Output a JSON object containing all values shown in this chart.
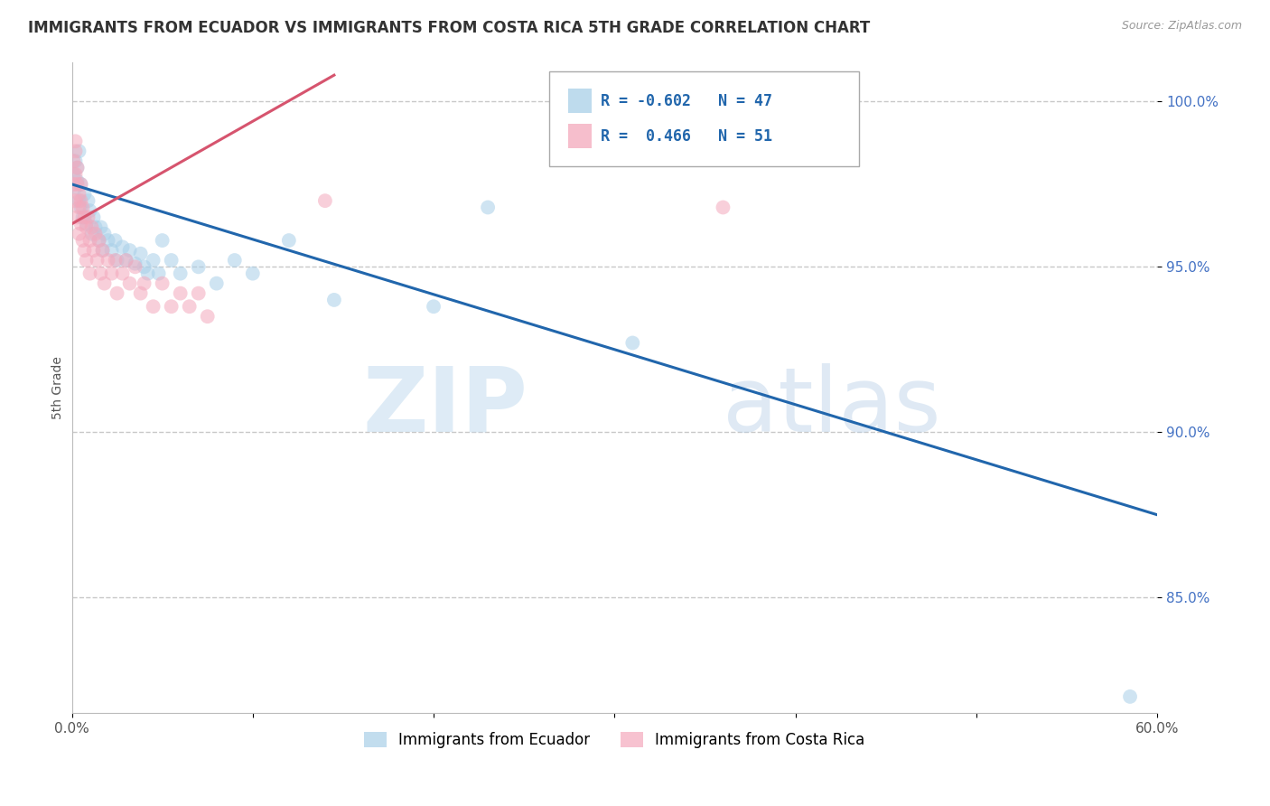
{
  "title": "IMMIGRANTS FROM ECUADOR VS IMMIGRANTS FROM COSTA RICA 5TH GRADE CORRELATION CHART",
  "source": "Source: ZipAtlas.com",
  "xlabel_bottom": [
    "Immigrants from Ecuador",
    "Immigrants from Costa Rica"
  ],
  "ylabel": "5th Grade",
  "xlim": [
    0.0,
    0.6
  ],
  "ylim": [
    0.815,
    1.012
  ],
  "xticks": [
    0.0,
    0.1,
    0.2,
    0.3,
    0.4,
    0.5,
    0.6
  ],
  "xticklabels": [
    "0.0%",
    "",
    "",
    "",
    "",
    "",
    "60.0%"
  ],
  "yticks": [
    0.85,
    0.9,
    0.95,
    1.0
  ],
  "yticklabels": [
    "85.0%",
    "90.0%",
    "95.0%",
    "100.0%"
  ],
  "ecuador_color": "#a8cfe8",
  "costa_rica_color": "#f4a8bc",
  "ecuador_R": -0.602,
  "ecuador_N": 47,
  "costa_rica_R": 0.466,
  "costa_rica_N": 51,
  "watermark_ZIP": "ZIP",
  "watermark_atlas": "atlas",
  "background_color": "#ffffff",
  "grid_color": "#c8c8c8",
  "ecuador_trendline_x": [
    0.0,
    0.6
  ],
  "ecuador_trendline_y": [
    0.975,
    0.875
  ],
  "costa_rica_trendline_x": [
    0.0,
    0.145
  ],
  "costa_rica_trendline_y": [
    0.963,
    1.008
  ],
  "ecuador_scatter": [
    [
      0.001,
      0.978
    ],
    [
      0.002,
      0.974
    ],
    [
      0.002,
      0.982
    ],
    [
      0.003,
      0.98
    ],
    [
      0.003,
      0.976
    ],
    [
      0.004,
      0.985
    ],
    [
      0.004,
      0.97
    ],
    [
      0.005,
      0.975
    ],
    [
      0.005,
      0.968
    ],
    [
      0.006,
      0.965
    ],
    [
      0.007,
      0.972
    ],
    [
      0.008,
      0.963
    ],
    [
      0.009,
      0.97
    ],
    [
      0.01,
      0.967
    ],
    [
      0.011,
      0.96
    ],
    [
      0.012,
      0.965
    ],
    [
      0.013,
      0.962
    ],
    [
      0.015,
      0.958
    ],
    [
      0.016,
      0.962
    ],
    [
      0.017,
      0.955
    ],
    [
      0.018,
      0.96
    ],
    [
      0.02,
      0.958
    ],
    [
      0.022,
      0.955
    ],
    [
      0.024,
      0.958
    ],
    [
      0.025,
      0.952
    ],
    [
      0.028,
      0.956
    ],
    [
      0.03,
      0.952
    ],
    [
      0.032,
      0.955
    ],
    [
      0.035,
      0.951
    ],
    [
      0.038,
      0.954
    ],
    [
      0.04,
      0.95
    ],
    [
      0.042,
      0.948
    ],
    [
      0.045,
      0.952
    ],
    [
      0.048,
      0.948
    ],
    [
      0.05,
      0.958
    ],
    [
      0.055,
      0.952
    ],
    [
      0.06,
      0.948
    ],
    [
      0.07,
      0.95
    ],
    [
      0.08,
      0.945
    ],
    [
      0.09,
      0.952
    ],
    [
      0.1,
      0.948
    ],
    [
      0.12,
      0.958
    ],
    [
      0.145,
      0.94
    ],
    [
      0.2,
      0.938
    ],
    [
      0.23,
      0.968
    ],
    [
      0.31,
      0.927
    ],
    [
      0.585,
      0.82
    ]
  ],
  "costa_rica_scatter": [
    [
      0.001,
      0.982
    ],
    [
      0.001,
      0.975
    ],
    [
      0.002,
      0.985
    ],
    [
      0.002,
      0.97
    ],
    [
      0.002,
      0.978
    ],
    [
      0.002,
      0.988
    ],
    [
      0.003,
      0.975
    ],
    [
      0.003,
      0.965
    ],
    [
      0.003,
      0.98
    ],
    [
      0.004,
      0.972
    ],
    [
      0.004,
      0.968
    ],
    [
      0.004,
      0.96
    ],
    [
      0.005,
      0.975
    ],
    [
      0.005,
      0.963
    ],
    [
      0.005,
      0.97
    ],
    [
      0.006,
      0.968
    ],
    [
      0.006,
      0.958
    ],
    [
      0.007,
      0.965
    ],
    [
      0.007,
      0.955
    ],
    [
      0.008,
      0.962
    ],
    [
      0.008,
      0.952
    ],
    [
      0.009,
      0.965
    ],
    [
      0.01,
      0.958
    ],
    [
      0.01,
      0.948
    ],
    [
      0.011,
      0.962
    ],
    [
      0.012,
      0.955
    ],
    [
      0.013,
      0.96
    ],
    [
      0.014,
      0.952
    ],
    [
      0.015,
      0.958
    ],
    [
      0.016,
      0.948
    ],
    [
      0.017,
      0.955
    ],
    [
      0.018,
      0.945
    ],
    [
      0.02,
      0.952
    ],
    [
      0.022,
      0.948
    ],
    [
      0.024,
      0.952
    ],
    [
      0.025,
      0.942
    ],
    [
      0.028,
      0.948
    ],
    [
      0.03,
      0.952
    ],
    [
      0.032,
      0.945
    ],
    [
      0.035,
      0.95
    ],
    [
      0.038,
      0.942
    ],
    [
      0.04,
      0.945
    ],
    [
      0.045,
      0.938
    ],
    [
      0.05,
      0.945
    ],
    [
      0.055,
      0.938
    ],
    [
      0.06,
      0.942
    ],
    [
      0.065,
      0.938
    ],
    [
      0.07,
      0.942
    ],
    [
      0.075,
      0.935
    ],
    [
      0.14,
      0.97
    ],
    [
      0.36,
      0.968
    ]
  ]
}
